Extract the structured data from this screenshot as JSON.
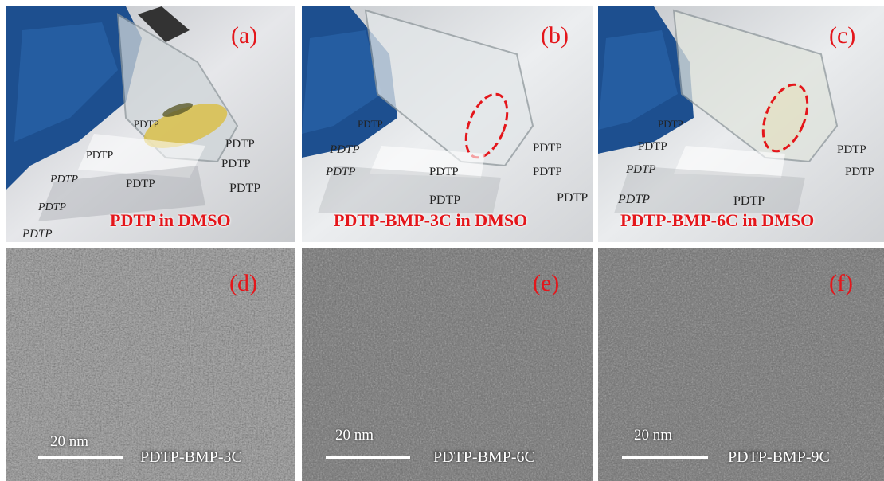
{
  "colors": {
    "label_red": "#e4161b",
    "glove_blue": "#1d4f8f",
    "tem_gray": "#6e6e6e"
  },
  "paper_text": "PDTP",
  "photos": [
    {
      "tag": "(a)",
      "caption": "PDTP in DMSO"
    },
    {
      "tag": "(b)",
      "caption": "PDTP-BMP-3C in DMSO"
    },
    {
      "tag": "(c)",
      "caption": "PDTP-BMP-6C in DMSO"
    }
  ],
  "tem": [
    {
      "tag": "(d)",
      "scale": "20 nm",
      "sample": "PDTP-BMP-3C"
    },
    {
      "tag": "(e)",
      "scale": "20 nm",
      "sample": "PDTP-BMP-6C"
    },
    {
      "tag": "(f)",
      "scale": "20 nm",
      "sample": "PDTP-BMP-9C"
    }
  ]
}
